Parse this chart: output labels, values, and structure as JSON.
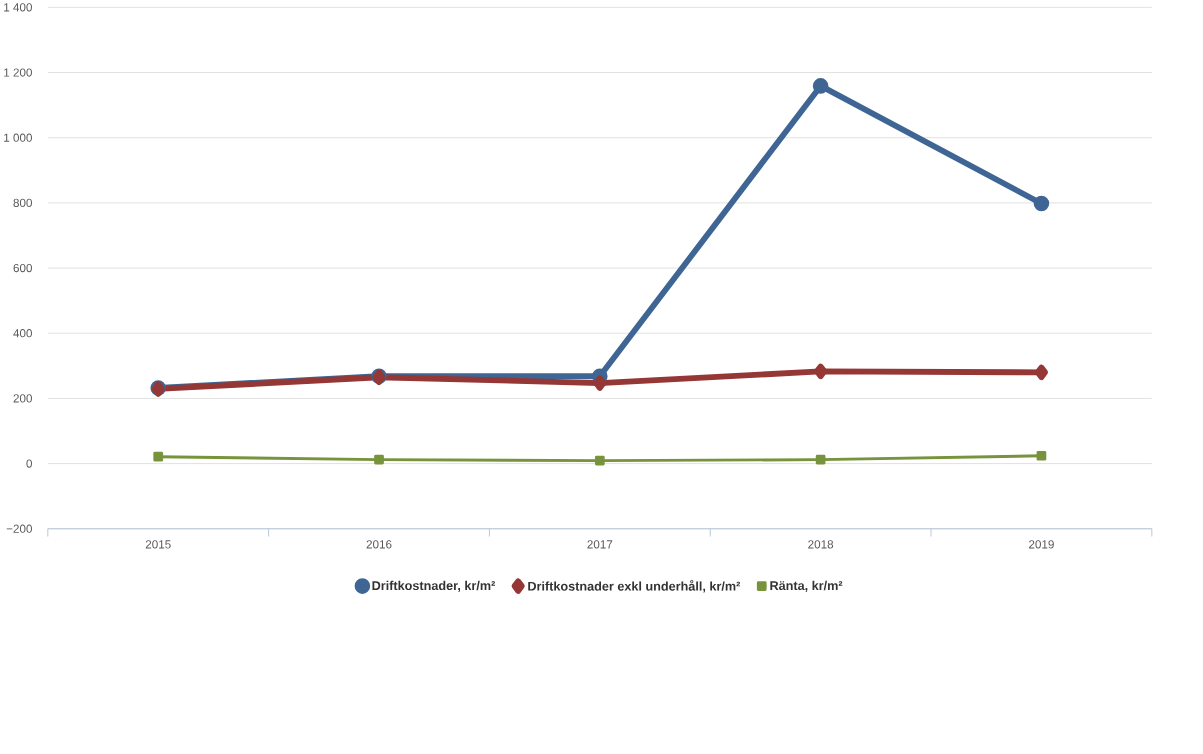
{
  "chart_data": {
    "type": "line",
    "categories": [
      "2015",
      "2016",
      "2017",
      "2018",
      "2019"
    ],
    "series": [
      {
        "name": "Driftkostnader, kr/m²",
        "color": "#3e6594",
        "marker": "circle",
        "values": [
          232,
          268,
          268,
          1159,
          798
        ]
      },
      {
        "name": "Driftkostnader exkl underhåll, kr/m²",
        "color": "#953735",
        "marker": "diamond",
        "values": [
          229,
          265,
          247,
          283,
          280
        ]
      },
      {
        "name": "Ränta, kr/m²",
        "color": "#77933c",
        "marker": "square",
        "values": [
          21,
          12,
          9,
          12,
          24
        ]
      }
    ],
    "ylim": [
      -200,
      1400
    ],
    "yticks": [
      {
        "value": -200,
        "label": "−200"
      },
      0,
      200,
      400,
      600,
      800,
      {
        "value": 1000,
        "label": "1 000"
      },
      {
        "value": 1200,
        "label": "1 200"
      },
      {
        "value": 1400,
        "label": "1 400"
      }
    ],
    "grid": "y",
    "legend": "bottom",
    "line_style": "solid"
  }
}
